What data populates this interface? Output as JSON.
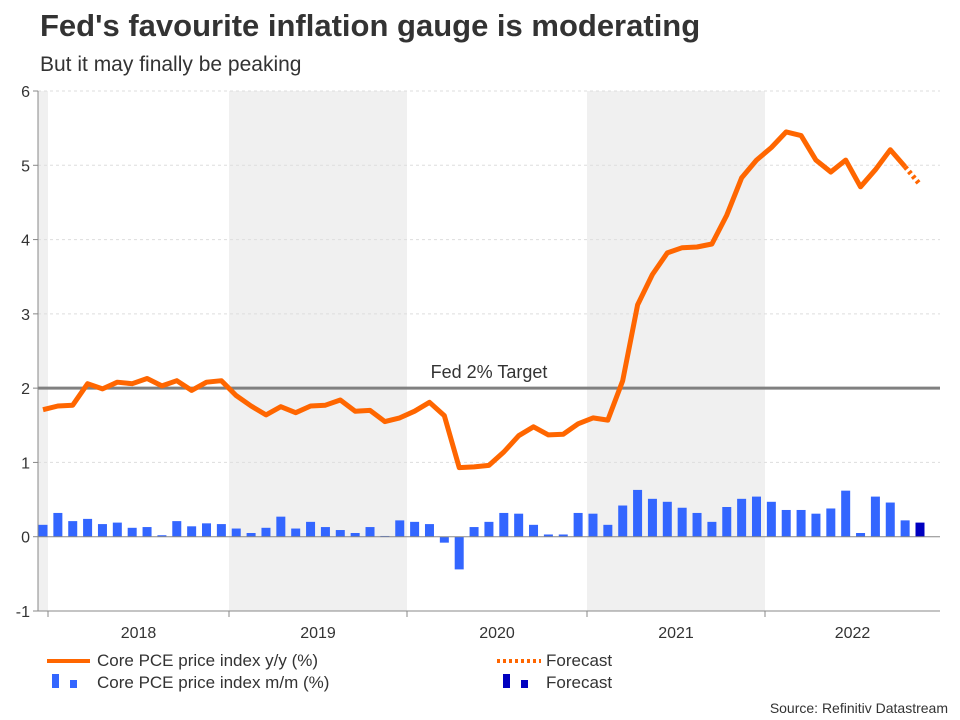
{
  "header": {
    "title": "Fed's favourite inflation gauge is moderating",
    "subtitle": "But it may finally be peaking"
  },
  "chart_data": {
    "type": "line",
    "title": "Fed's favourite inflation gauge is moderating",
    "subtitle": "But it may finally be peaking",
    "ylim": [
      -1,
      6
    ],
    "yticks": [
      "-1",
      "0",
      "1",
      "2",
      "3",
      "4",
      "5",
      "6"
    ],
    "xtick_labels": [
      "2018",
      "2019",
      "2020",
      "2021",
      "2022"
    ],
    "grid": true,
    "annotation": "Fed 2% Target",
    "target_value": 2,
    "series": [
      {
        "name": "Core PCE price index y/y (%)",
        "type": "line",
        "color": "#ff6600",
        "forecast_points": 1,
        "values": [
          1.71,
          1.76,
          1.77,
          2.06,
          1.99,
          2.08,
          2.06,
          2.13,
          2.03,
          2.1,
          1.97,
          2.08,
          2.1,
          1.9,
          1.76,
          1.64,
          1.75,
          1.67,
          1.76,
          1.77,
          1.84,
          1.69,
          1.7,
          1.55,
          1.6,
          1.69,
          1.81,
          1.63,
          0.93,
          0.94,
          0.96,
          1.14,
          1.36,
          1.48,
          1.37,
          1.38,
          1.52,
          1.6,
          1.57,
          2.1,
          3.12,
          3.53,
          3.82,
          3.89,
          3.9,
          3.94,
          4.33,
          4.83,
          5.07,
          5.24,
          5.45,
          5.4,
          5.07,
          4.91,
          5.07,
          4.71,
          4.94,
          5.21,
          4.98,
          4.74
        ]
      },
      {
        "name": "Core PCE price index m/m (%)",
        "type": "bar",
        "color": "#3366ff",
        "forecast_color": "#0000c0",
        "forecast_points": 1,
        "values": [
          0.16,
          0.32,
          0.21,
          0.24,
          0.17,
          0.19,
          0.12,
          0.13,
          0.02,
          0.21,
          0.14,
          0.18,
          0.17,
          0.11,
          0.05,
          0.12,
          0.27,
          0.11,
          0.2,
          0.13,
          0.09,
          0.05,
          0.13,
          0.01,
          0.22,
          0.2,
          0.17,
          -0.08,
          -0.44,
          0.13,
          0.2,
          0.32,
          0.31,
          0.16,
          0.03,
          0.03,
          0.32,
          0.31,
          0.16,
          0.42,
          0.63,
          0.51,
          0.47,
          0.39,
          0.32,
          0.2,
          0.4,
          0.51,
          0.54,
          0.47,
          0.36,
          0.36,
          0.31,
          0.38,
          0.62,
          0.05,
          0.54,
          0.46,
          0.22,
          0.19
        ]
      }
    ],
    "legend": {
      "placement": "bottom",
      "items": [
        "Core PCE price index y/y (%)",
        "Forecast",
        "Core PCE price index m/m (%)",
        "Forecast"
      ]
    },
    "source": "Source: Refinitiv Datastream"
  }
}
